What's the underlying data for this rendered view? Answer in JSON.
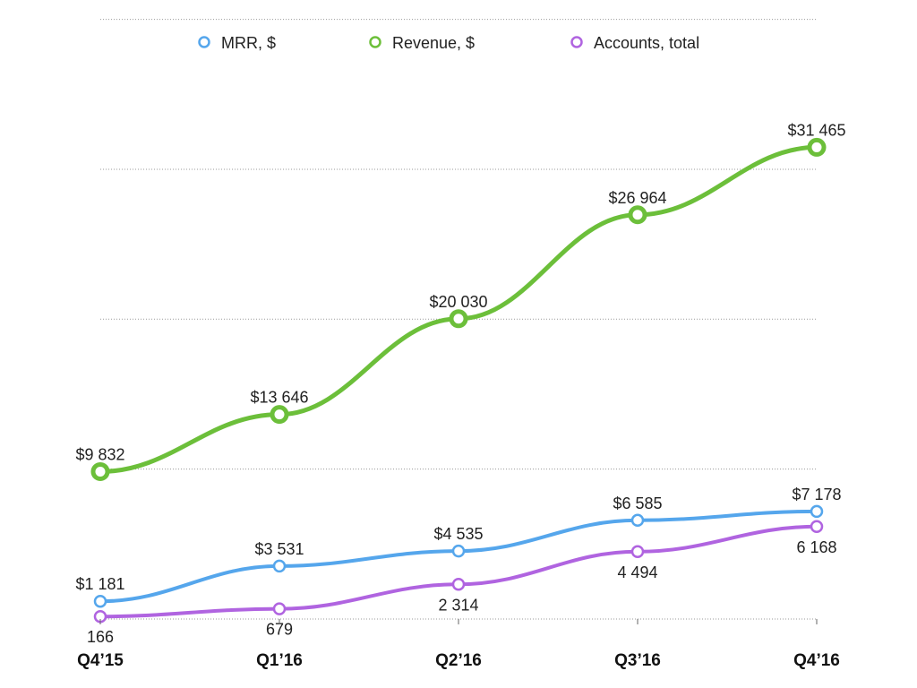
{
  "chart_data": {
    "type": "line",
    "title": "",
    "xlabel": "",
    "ylabel": "",
    "x": [
      "Q4’15",
      "Q1’16",
      "Q2’16",
      "Q3’16",
      "Q4’16"
    ],
    "ylim": [
      0,
      40000
    ],
    "grid": true,
    "legend_position": "top",
    "series": [
      {
        "name": "MRR, $",
        "color": "#55a6ec",
        "values": [
          1181,
          3531,
          4535,
          6585,
          7178
        ],
        "labels": [
          "$1 181",
          "$3 531",
          "$4 535",
          "$6 585",
          "$7 178"
        ],
        "label_position": "above"
      },
      {
        "name": "Revenue, $",
        "color": "#6cbf3a",
        "values": [
          9832,
          13646,
          20030,
          26964,
          31465
        ],
        "labels": [
          "$9 832",
          "$13 646",
          "$20 030",
          "$26 964",
          "$31 465"
        ],
        "label_position": "above"
      },
      {
        "name": "Accounts, total",
        "color": "#b064e0",
        "values": [
          166,
          679,
          2314,
          4494,
          6168
        ],
        "labels": [
          "166",
          "679",
          "2 314",
          "4 494",
          "6 168"
        ],
        "label_position": "below"
      }
    ]
  }
}
